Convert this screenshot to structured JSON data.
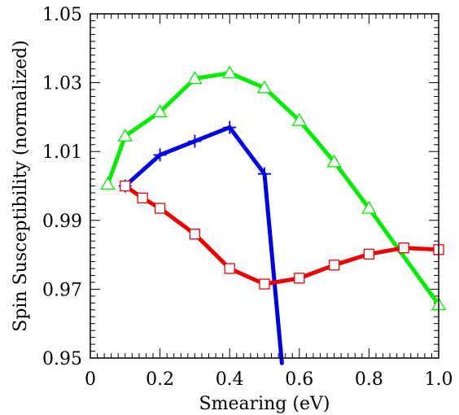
{
  "chart_data": {
    "type": "line",
    "title": "",
    "xlabel": "Smearing (eV)",
    "ylabel": "Spin Susceptibility (normalized)",
    "xlim": [
      0,
      1.0
    ],
    "ylim": [
      0.95,
      1.05
    ],
    "x_ticks": [
      0,
      0.2,
      0.4,
      0.6,
      0.8,
      1.0
    ],
    "x_tick_labels": [
      "0",
      "0.2",
      "0.4",
      "0.6",
      "0.8",
      "1.0"
    ],
    "y_ticks": [
      0.95,
      0.97,
      0.99,
      1.01,
      1.03,
      1.05
    ],
    "y_tick_labels": [
      "0.95",
      "0.97",
      "0.99",
      "1.01",
      "1.03",
      "1.05"
    ],
    "grid": false,
    "legend": "none",
    "series": [
      {
        "color": "#00ee00",
        "marker": "triangle-open",
        "x": [
          0.05,
          0.1,
          0.2,
          0.3,
          0.4,
          0.5,
          0.6,
          0.7,
          0.8,
          1.0
        ],
        "y": [
          1.0005,
          1.0145,
          1.0215,
          1.0312,
          1.0328,
          1.0285,
          1.019,
          1.007,
          0.9935,
          0.9655
        ]
      },
      {
        "color": "#0000ee",
        "marker": "plus",
        "x": [
          0.1,
          0.2,
          0.3,
          0.4,
          0.5,
          0.55
        ],
        "y": [
          1.0,
          1.009,
          1.013,
          1.017,
          1.0035,
          0.9485
        ],
        "marker_count": 5
      },
      {
        "color": "#ee0000",
        "marker": "square-open",
        "x": [
          0.1,
          0.15,
          0.2,
          0.3,
          0.4,
          0.5,
          0.6,
          0.7,
          0.8,
          0.9,
          1.0
        ],
        "y": [
          1.0,
          0.9965,
          0.9935,
          0.986,
          0.976,
          0.9715,
          0.9732,
          0.977,
          0.9802,
          0.982,
          0.9815
        ]
      }
    ]
  }
}
